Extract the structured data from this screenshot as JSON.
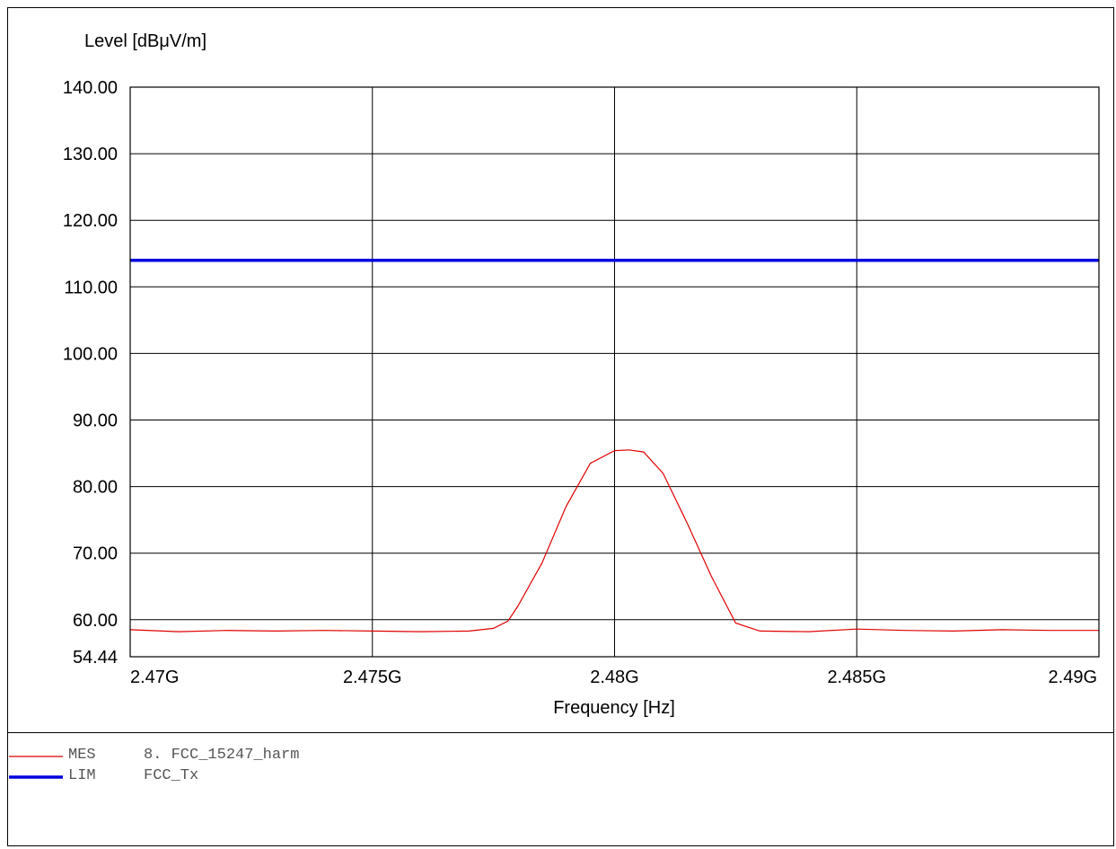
{
  "chart_data": {
    "type": "line",
    "ylabel": "Level [dBμV/m]",
    "xlabel": "Frequency [Hz]",
    "xlim": [
      2470000000.0,
      2490000000.0
    ],
    "ylim": [
      54.44,
      140
    ],
    "y_ticks": [
      "140.00",
      "130.00",
      "120.00",
      "110.00",
      "100.00",
      "90.00",
      "80.00",
      "70.00",
      "60.00",
      "54.44"
    ],
    "y_tick_values": [
      140,
      130,
      120,
      110,
      100,
      90,
      80,
      70,
      60,
      54.44
    ],
    "x_ticks": [
      "2.47G",
      "2.475G",
      "2.48G",
      "2.485G",
      "2.49G"
    ],
    "x_tick_values": [
      2470000000.0,
      2475000000.0,
      2480000000.0,
      2485000000.0,
      2490000000.0
    ],
    "grid": true,
    "series": [
      {
        "name": "MES 8. FCC_15247_harm",
        "color": "#e00000",
        "x": [
          2470000000.0,
          2471000000.0,
          2472000000.0,
          2473000000.0,
          2474000000.0,
          2475000000.0,
          2476000000.0,
          2477000000.0,
          2477500000.0,
          2477800000.0,
          2478000000.0,
          2478500000.0,
          2479000000.0,
          2479500000.0,
          2480000000.0,
          2480300000.0,
          2480600000.0,
          2481000000.0,
          2481500000.0,
          2482000000.0,
          2482500000.0,
          2483000000.0,
          2484000000.0,
          2485000000.0,
          2486000000.0,
          2487000000.0,
          2488000000.0,
          2489000000.0,
          2490000000.0
        ],
        "values": [
          58.5,
          58.2,
          58.4,
          58.3,
          58.4,
          58.3,
          58.2,
          58.3,
          58.7,
          59.8,
          62.0,
          68.5,
          77.0,
          83.5,
          85.4,
          85.5,
          85.2,
          82.0,
          74.5,
          66.5,
          59.5,
          58.3,
          58.2,
          58.6,
          58.4,
          58.3,
          58.5,
          58.4,
          58.4
        ]
      },
      {
        "name": "LIM FCC_Tx",
        "color": "#0000dd",
        "x": [
          2470000000.0,
          2490000000.0
        ],
        "values": [
          114,
          114
        ]
      }
    ]
  },
  "legend": [
    {
      "tag": "MES",
      "label": "8. FCC_15247_harm",
      "color": "#e00000"
    },
    {
      "tag": "LIM",
      "label": "FCC_Tx",
      "color": "#0000dd"
    }
  ]
}
